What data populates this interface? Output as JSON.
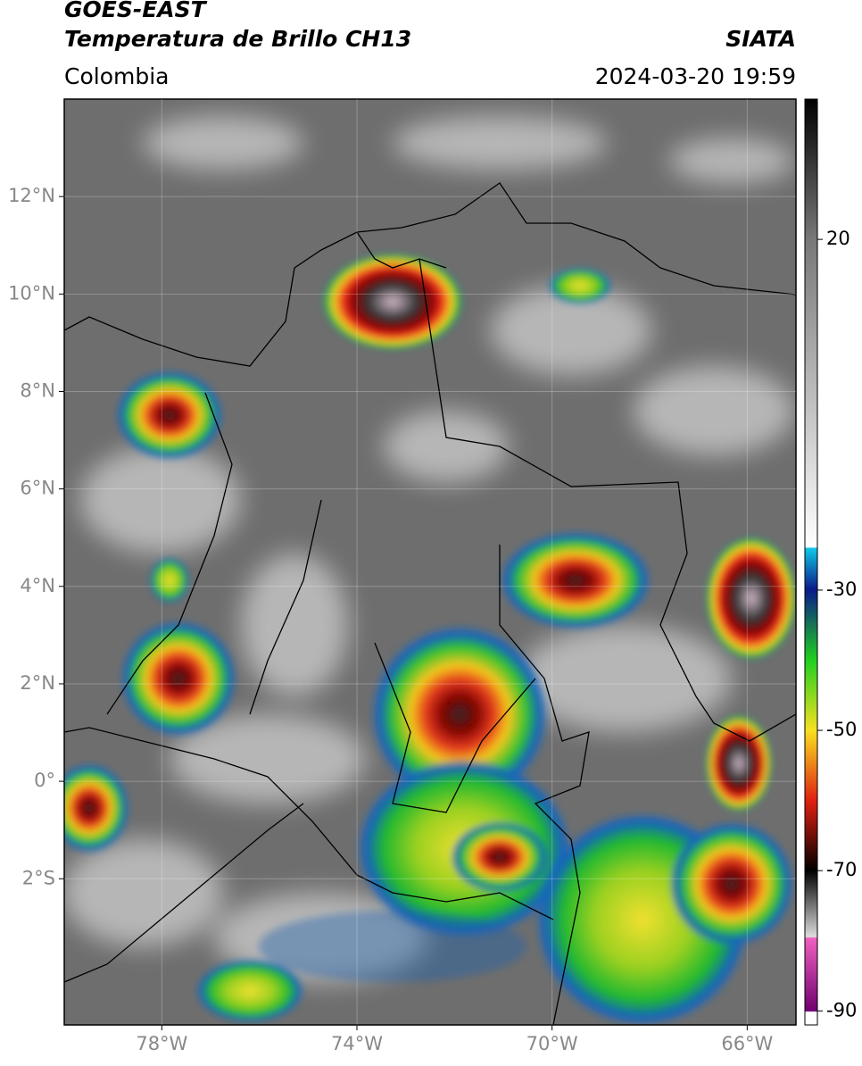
{
  "header": {
    "title": "GOES-EAST",
    "subtitle": "Temperatura de Brillo CH13",
    "source": "SIATA",
    "region": "Colombia",
    "datetime": "2024-03-20 19:59"
  },
  "map": {
    "xlim": [
      -80,
      -65
    ],
    "ylim": [
      -5,
      14
    ],
    "xticks": [
      {
        "value": -78,
        "label": "78°W"
      },
      {
        "value": -74,
        "label": "74°W"
      },
      {
        "value": -70,
        "label": "70°W"
      },
      {
        "value": -66,
        "label": "66°W"
      }
    ],
    "yticks": [
      {
        "value": 12,
        "label": "12°N"
      },
      {
        "value": 10,
        "label": "10°N"
      },
      {
        "value": 8,
        "label": "8°N"
      },
      {
        "value": 6,
        "label": "6°N"
      },
      {
        "value": 4,
        "label": "4°N"
      },
      {
        "value": 2,
        "label": "2°N"
      },
      {
        "value": 0,
        "label": "0°"
      },
      {
        "value": -2,
        "label": "2°S"
      }
    ],
    "grid": true
  },
  "colorbar": {
    "lim": [
      -92,
      40
    ],
    "ticks": [
      20,
      -30,
      -50,
      -70,
      -90
    ]
  }
}
